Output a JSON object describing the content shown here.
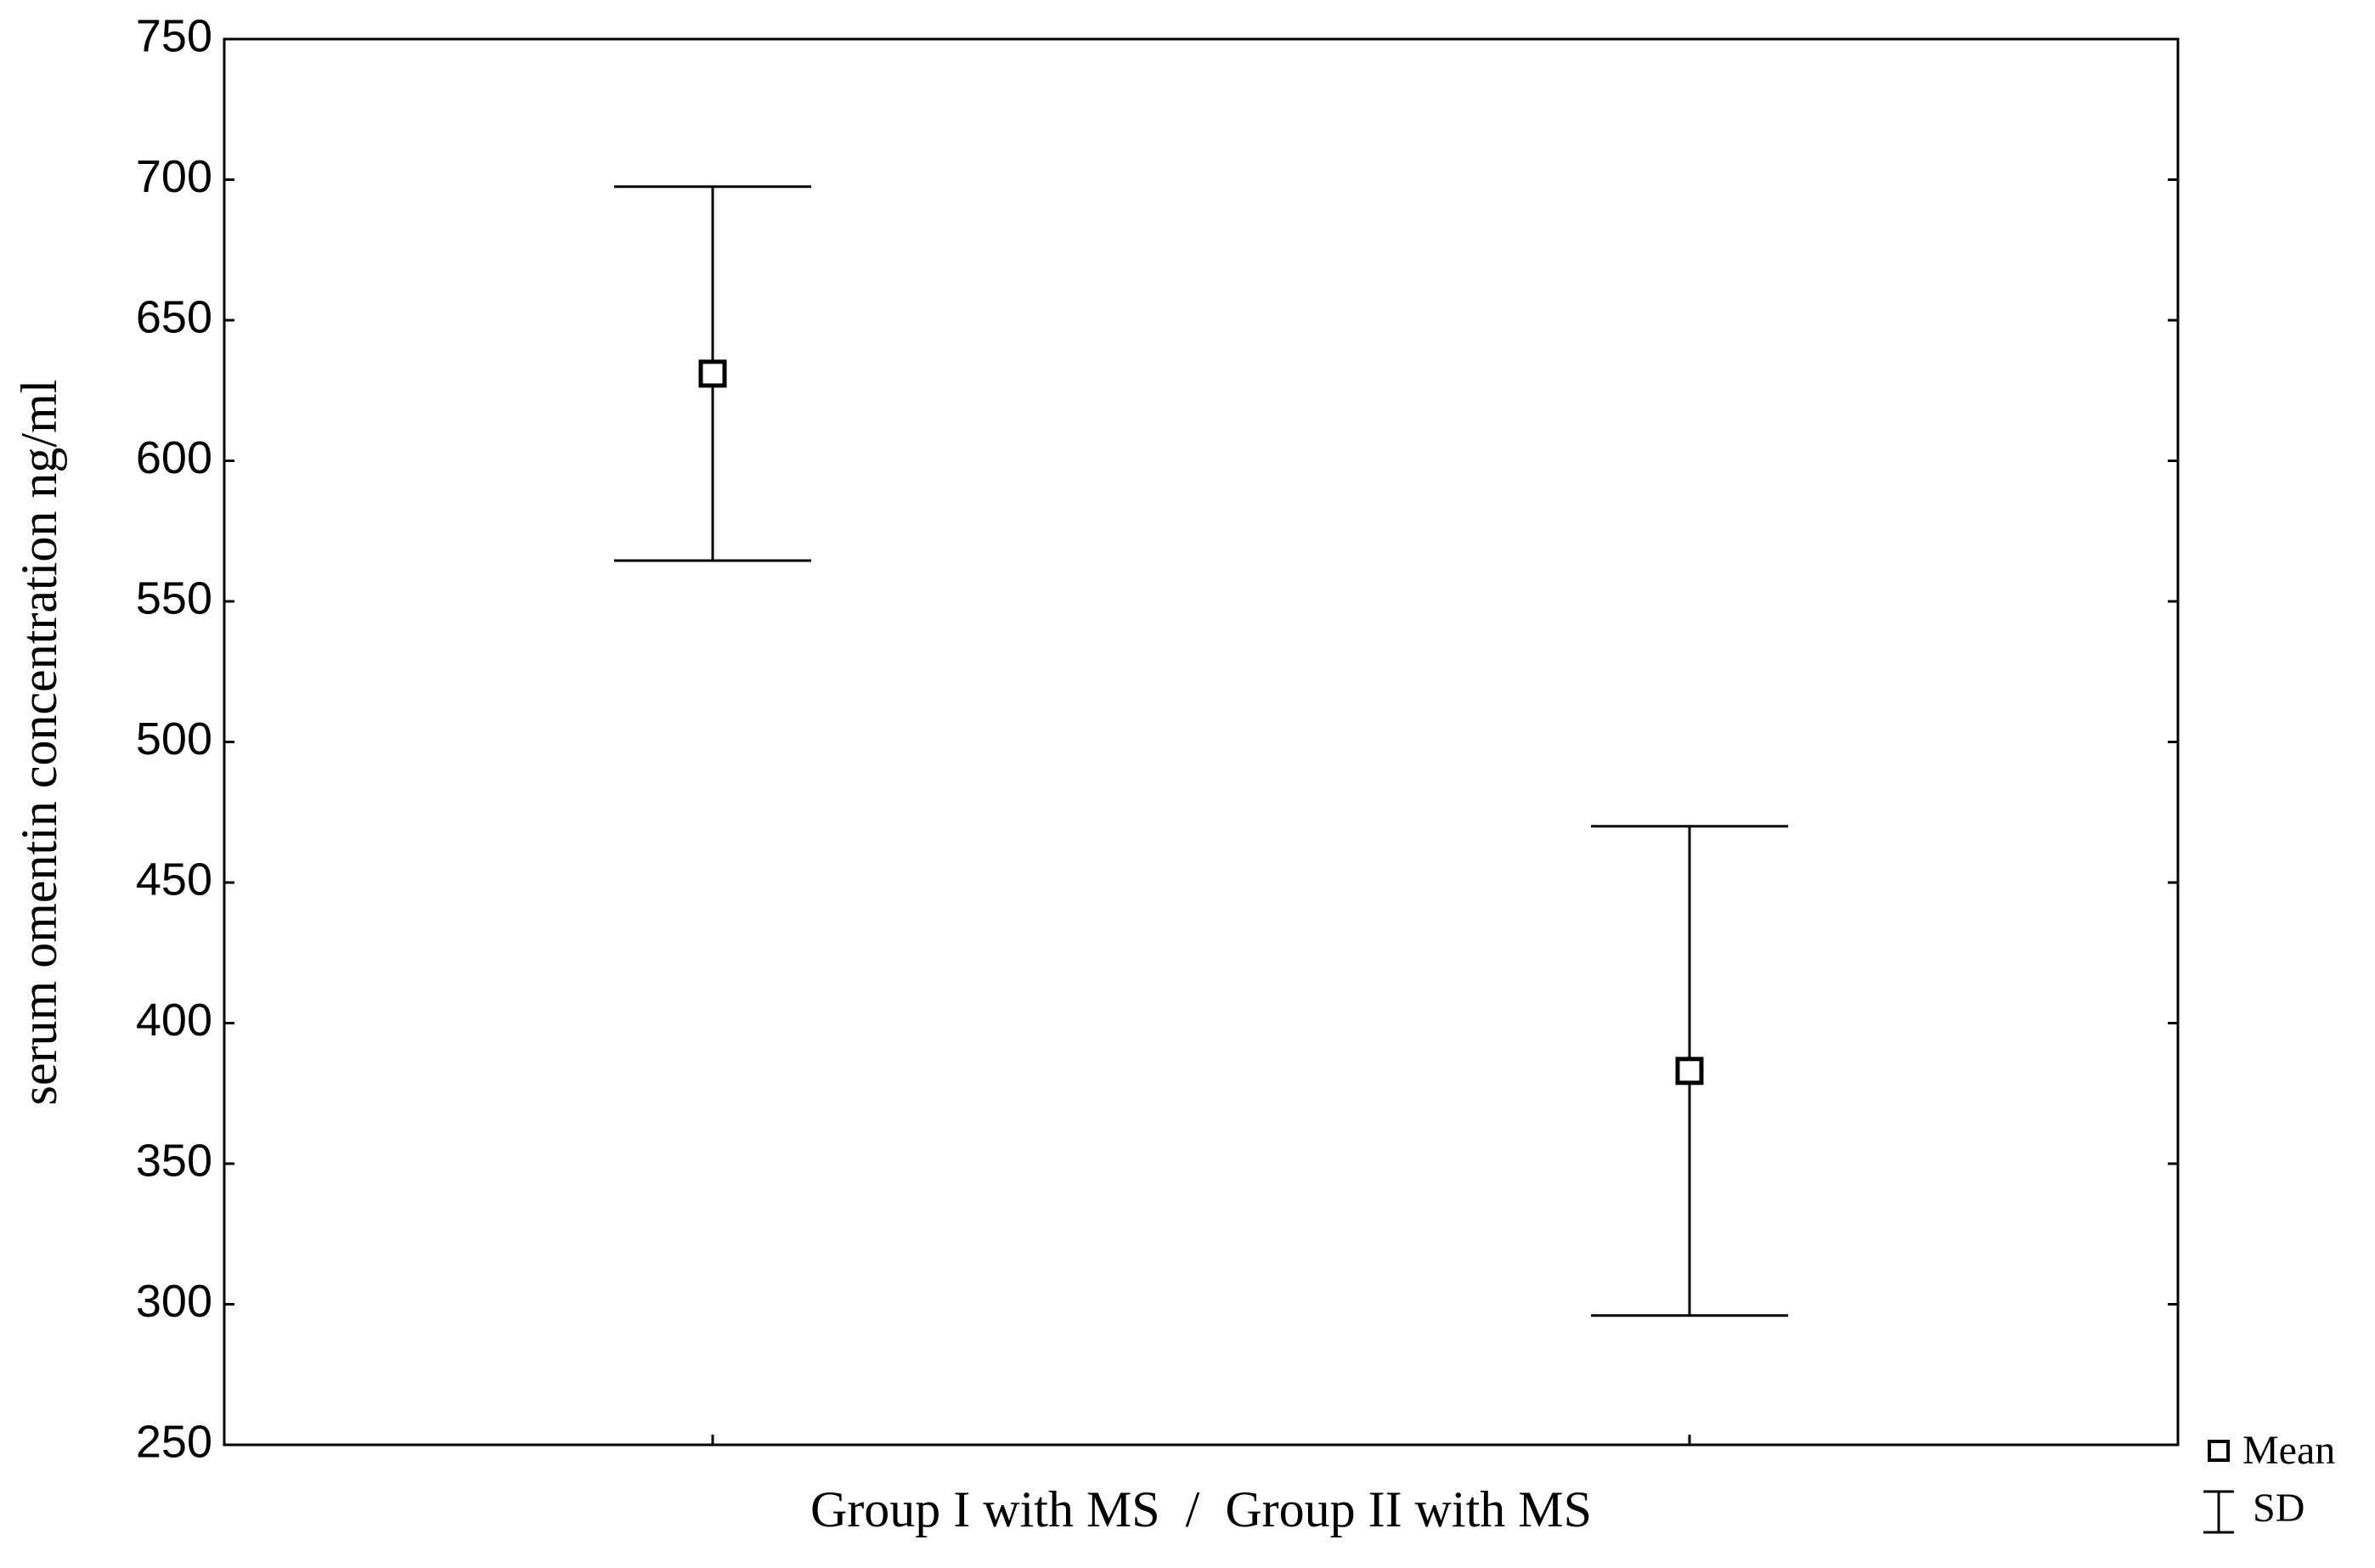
{
  "chart_data": {
    "type": "errorbar",
    "x_label": "Group I with MS  /  Group II with MS",
    "y_label": "serum omentin concentration ng/ml",
    "categories": [
      null,
      null
    ],
    "series": [
      {
        "name": "Mean",
        "color": "#000000",
        "values": [
          631,
          383
        ],
        "errors": [
          66.5,
          87
        ],
        "error_name": "SD"
      }
    ],
    "ylim": [
      250,
      750
    ],
    "yticks": [
      250,
      300,
      350,
      400,
      450,
      500,
      550,
      600,
      650,
      700,
      750
    ]
  }
}
